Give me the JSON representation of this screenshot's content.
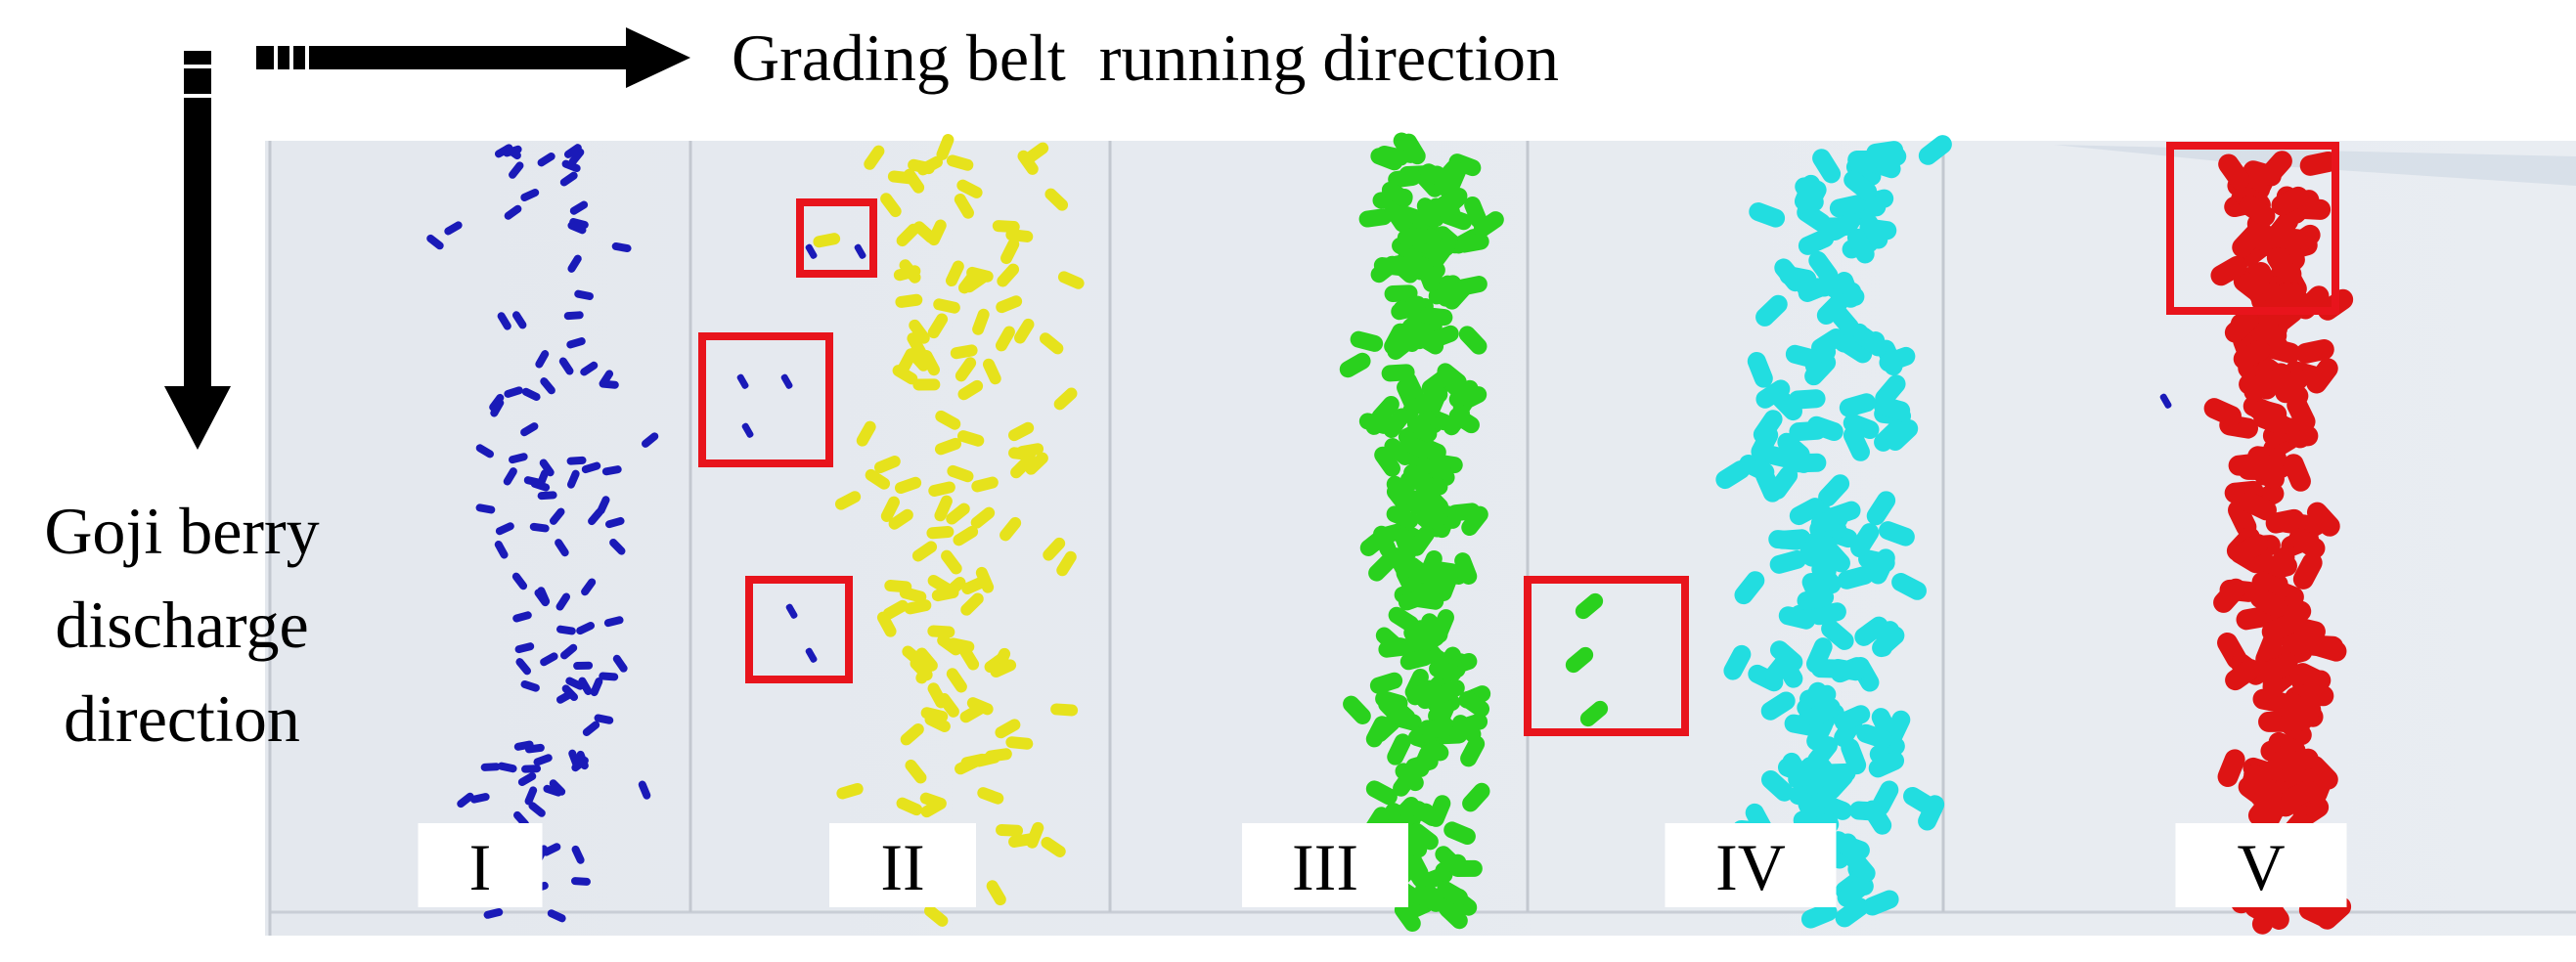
{
  "header": {
    "arrow_label": "Grading belt  running direction",
    "side_label": [
      "Goji berry",
      "discharge",
      "direction"
    ]
  },
  "lanes": [
    {
      "label": "I"
    },
    {
      "label": "II"
    },
    {
      "label": "III"
    },
    {
      "label": "IV"
    },
    {
      "label": "V"
    }
  ]
}
